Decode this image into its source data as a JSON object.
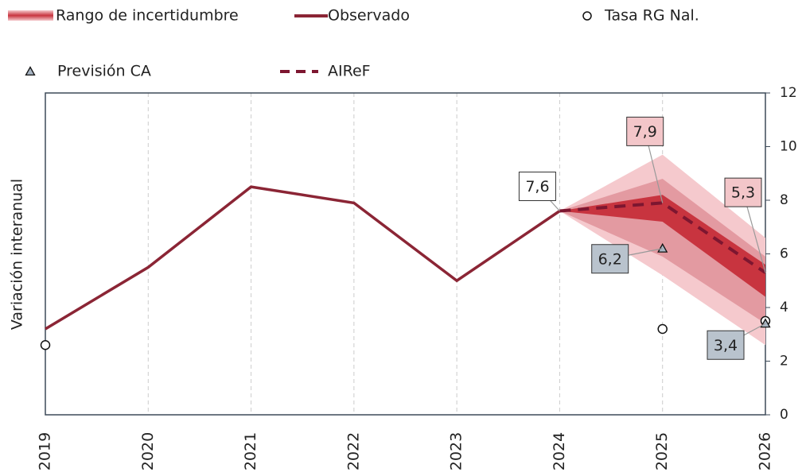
{
  "chart_data": {
    "type": "line",
    "y_label": "Variación interanual",
    "categories": [
      "2019",
      "2020",
      "2021",
      "2022",
      "2023",
      "2024",
      "2025",
      "2026"
    ],
    "ylim": [
      0,
      12
    ],
    "yticks": [
      0,
      2,
      4,
      6,
      8,
      10,
      12
    ],
    "grid": true,
    "legend": "top",
    "uncertainty": {
      "name": "Rango de incertidumbre",
      "bands": [
        {
          "color": "#f5c9cd",
          "lower": [
            null,
            null,
            null,
            null,
            null,
            7.6,
            5.2,
            2.6
          ],
          "upper": [
            null,
            null,
            null,
            null,
            null,
            7.6,
            9.7,
            6.6
          ]
        },
        {
          "color": "#e39aa1",
          "lower": [
            null,
            null,
            null,
            null,
            null,
            7.6,
            5.9,
            3.4
          ],
          "upper": [
            null,
            null,
            null,
            null,
            null,
            7.6,
            8.8,
            5.9
          ]
        },
        {
          "color": "#c8343f",
          "lower": [
            null,
            null,
            null,
            null,
            null,
            7.6,
            7.2,
            4.4
          ],
          "upper": [
            null,
            null,
            null,
            null,
            null,
            7.6,
            8.2,
            5.6
          ]
        }
      ]
    },
    "series": [
      {
        "name": "Observado",
        "kind": "line",
        "color": "#8b2535",
        "values": [
          3.2,
          5.5,
          8.5,
          7.9,
          5.0,
          7.6,
          null,
          null
        ]
      },
      {
        "name": "Tasa RG Nal.",
        "kind": "circle",
        "color": "#ffffff",
        "values": [
          2.6,
          null,
          null,
          null,
          null,
          null,
          3.2,
          3.5
        ]
      },
      {
        "name": "Previsión CA",
        "kind": "triangle",
        "color": "#a9b6c4",
        "values": [
          null,
          null,
          null,
          null,
          null,
          null,
          6.2,
          3.4
        ],
        "value_labels": [
          null,
          null,
          null,
          null,
          null,
          null,
          "6,2",
          "3,4"
        ]
      },
      {
        "name": "AIReF",
        "kind": "dashed",
        "color": "#7d1630",
        "values": [
          null,
          null,
          null,
          null,
          null,
          7.6,
          7.9,
          5.3
        ],
        "value_labels": [
          null,
          null,
          null,
          null,
          null,
          "7,6",
          "7,9",
          "5,3"
        ]
      }
    ]
  }
}
